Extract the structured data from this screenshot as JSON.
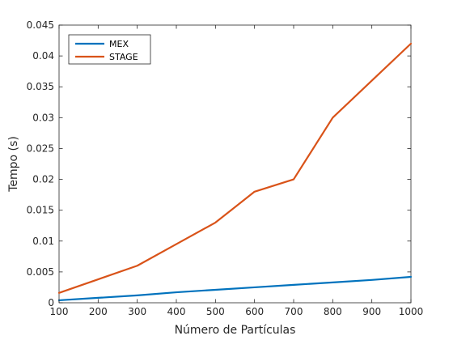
{
  "chart_data": {
    "type": "line",
    "title": "",
    "xlabel": "Número de Partículas",
    "ylabel": "Tempo (s)",
    "x": [
      100,
      200,
      300,
      400,
      500,
      600,
      700,
      800,
      900,
      1000
    ],
    "xlim": [
      100,
      1000
    ],
    "ylim": [
      0,
      0.045
    ],
    "x_ticks": [
      "100",
      "200",
      "300",
      "400",
      "500",
      "600",
      "700",
      "800",
      "900",
      "1000"
    ],
    "y_ticks": [
      "0",
      "0.005",
      "0.01",
      "0.015",
      "0.02",
      "0.025",
      "0.03",
      "0.035",
      "0.04",
      "0.045"
    ],
    "grid": false,
    "legend_position": "top-left",
    "series": [
      {
        "name": "MEX",
        "color": "#0072BD",
        "values": [
          0.0004,
          0.0008,
          0.0012,
          0.0017,
          0.0021,
          0.0025,
          0.0029,
          0.0033,
          0.0037,
          0.0042
        ]
      },
      {
        "name": "STAGE",
        "color": "#D95319",
        "values": [
          0.0016,
          0.0038,
          0.006,
          0.0095,
          0.013,
          0.018,
          0.02,
          0.03,
          0.036,
          0.042
        ]
      }
    ]
  }
}
